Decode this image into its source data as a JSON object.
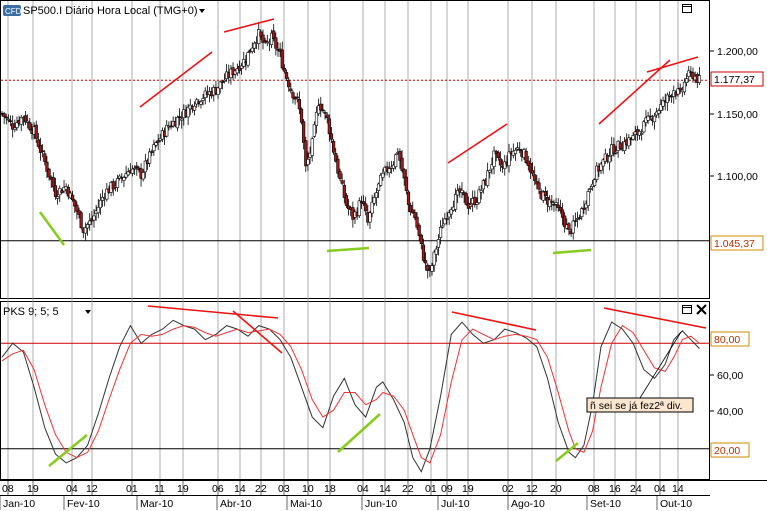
{
  "header": {
    "badge": "CFD",
    "title": "SP500.I Diário Hora Local (TMG+0)"
  },
  "price_panel": {
    "current_price_label": "1.177,37",
    "support_label": "1.045,37",
    "y_ticks": [
      "1.200,00",
      "1.150,00",
      "1.100,00"
    ]
  },
  "indicator_panel": {
    "title": "PKS 9; 5; 5",
    "level_high_label": "80,00",
    "level_low_label": "20,00",
    "y_ticks": [
      "60,00",
      "40,00"
    ],
    "annotation": "ñ sei se já fez2ª div."
  },
  "x_axis": {
    "day_ticks": [
      "08",
      "19",
      "04",
      "12",
      "01",
      "11",
      "19",
      "06",
      "14",
      "22",
      "03",
      "10",
      "18",
      "04",
      "14",
      "22",
      "01",
      "09",
      "19",
      "02",
      "12",
      "20",
      "08",
      "16",
      "24",
      "04",
      "14"
    ],
    "month_ticks": [
      "Jan-10",
      "Fev-10",
      "Mar-10",
      "Abr-10",
      "Mai-10",
      "Jun-10",
      "Jul-10",
      "Ago-10",
      "Set-10",
      "Out-10"
    ]
  },
  "colors": {
    "up_candle": "#ffffff",
    "down_candle": "#a01818",
    "trendline": "#ee1111",
    "green_line": "#88cc22",
    "k_line": "#333333",
    "d_line": "#ee3333",
    "current_price_line": "#cc0000"
  },
  "chart_data": [
    {
      "type": "candlestick",
      "title": "SP500.I Diário Hora Local (TMG+0)",
      "ylim": [
        1000,
        1240
      ],
      "y_ticks": [
        1100,
        1150,
        1200
      ],
      "horizontal_lines": [
        {
          "value": 1177.37,
          "style": "dotted",
          "color": "#cc0000",
          "label": "1.177,37"
        },
        {
          "value": 1045.37,
          "style": "solid",
          "color": "#000000",
          "label": "1.045,37"
        }
      ],
      "close_path": [
        [
          0,
          1150
        ],
        [
          5,
          1140
        ],
        [
          10,
          1148
        ],
        [
          15,
          1135
        ],
        [
          20,
          1110
        ],
        [
          25,
          1085
        ],
        [
          30,
          1090
        ],
        [
          35,
          1070
        ],
        [
          38,
          1055
        ],
        [
          42,
          1062
        ],
        [
          48,
          1085
        ],
        [
          55,
          1095
        ],
        [
          60,
          1105
        ],
        [
          65,
          1100
        ],
        [
          72,
          1125
        ],
        [
          78,
          1140
        ],
        [
          85,
          1150
        ],
        [
          90,
          1160
        ],
        [
          95,
          1165
        ],
        [
          100,
          1170
        ],
        [
          105,
          1180
        ],
        [
          110,
          1188
        ],
        [
          114,
          1195
        ],
        [
          118,
          1210
        ],
        [
          120,
          1215
        ],
        [
          123,
          1205
        ],
        [
          126,
          1212
        ],
        [
          130,
          1198
        ],
        [
          132,
          1185
        ],
        [
          135,
          1170
        ],
        [
          138,
          1160
        ],
        [
          140,
          1145
        ],
        [
          142,
          1105
        ],
        [
          145,
          1125
        ],
        [
          148,
          1160
        ],
        [
          152,
          1145
        ],
        [
          155,
          1120
        ],
        [
          158,
          1095
        ],
        [
          161,
          1075
        ],
        [
          164,
          1065
        ],
        [
          166,
          1070
        ],
        [
          168,
          1080
        ],
        [
          171,
          1060
        ],
        [
          174,
          1080
        ],
        [
          177,
          1095
        ],
        [
          180,
          1105
        ],
        [
          183,
          1110
        ],
        [
          185,
          1120
        ],
        [
          188,
          1095
        ],
        [
          190,
          1075
        ],
        [
          193,
          1065
        ],
        [
          196,
          1040
        ],
        [
          198,
          1025
        ],
        [
          200,
          1018
        ],
        [
          203,
          1040
        ],
        [
          206,
          1060
        ],
        [
          210,
          1075
        ],
        [
          214,
          1085
        ],
        [
          218,
          1075
        ],
        [
          222,
          1080
        ],
        [
          226,
          1095
        ],
        [
          230,
          1115
        ],
        [
          234,
          1105
        ],
        [
          238,
          1118
        ],
        [
          242,
          1122
        ],
        [
          246,
          1110
        ],
        [
          250,
          1088
        ],
        [
          254,
          1080
        ],
        [
          258,
          1075
        ],
        [
          262,
          1065
        ],
        [
          265,
          1052
        ],
        [
          268,
          1060
        ],
        [
          271,
          1070
        ],
        [
          274,
          1085
        ],
        [
          277,
          1100
        ],
        [
          281,
          1110
        ],
        [
          285,
          1120
        ],
        [
          290,
          1125
        ],
        [
          295,
          1130
        ],
        [
          300,
          1140
        ],
        [
          305,
          1150
        ],
        [
          310,
          1160
        ],
        [
          314,
          1170
        ],
        [
          317,
          1165
        ],
        [
          320,
          1180
        ],
        [
          323,
          1182
        ],
        [
          326,
          1177
        ]
      ]
    },
    {
      "type": "line",
      "title": "PKS 9; 5; 5",
      "ylim": [
        0,
        100
      ],
      "y_ticks": [
        20,
        40,
        60,
        80
      ],
      "horizontal_lines": [
        {
          "value": 80,
          "color": "#cc0000",
          "label": "80,00"
        },
        {
          "value": 20,
          "color": "#000000",
          "label": "20,00"
        }
      ],
      "series": [
        {
          "color": "#333333",
          "points": [
            [
              0,
              72
            ],
            [
              5,
              80
            ],
            [
              10,
              75
            ],
            [
              15,
              55
            ],
            [
              20,
              32
            ],
            [
              25,
              17
            ],
            [
              30,
              12
            ],
            [
              35,
              15
            ],
            [
              40,
              22
            ],
            [
              45,
              40
            ],
            [
              50,
              60
            ],
            [
              55,
              78
            ],
            [
              60,
              90
            ],
            [
              65,
              80
            ],
            [
              70,
              85
            ],
            [
              75,
              88
            ],
            [
              80,
              93
            ],
            [
              85,
              90
            ],
            [
              90,
              88
            ],
            [
              95,
              82
            ],
            [
              100,
              85
            ],
            [
              105,
              90
            ],
            [
              110,
              88
            ],
            [
              115,
              84
            ],
            [
              120,
              90
            ],
            [
              125,
              88
            ],
            [
              130,
              82
            ],
            [
              135,
              72
            ],
            [
              140,
              55
            ],
            [
              145,
              38
            ],
            [
              150,
              32
            ],
            [
              155,
              50
            ],
            [
              160,
              60
            ],
            [
              165,
              45
            ],
            [
              170,
              38
            ],
            [
              175,
              55
            ],
            [
              178,
              58
            ],
            [
              183,
              48
            ],
            [
              188,
              35
            ],
            [
              192,
              15
            ],
            [
              196,
              7
            ],
            [
              200,
              20
            ],
            [
              205,
              50
            ],
            [
              210,
              85
            ],
            [
              215,
              92
            ],
            [
              220,
              85
            ],
            [
              225,
              80
            ],
            [
              230,
              82
            ],
            [
              235,
              88
            ],
            [
              240,
              86
            ],
            [
              245,
              83
            ],
            [
              250,
              78
            ],
            [
              255,
              60
            ],
            [
              260,
              35
            ],
            [
              265,
              18
            ],
            [
              268,
              15
            ],
            [
              272,
              22
            ],
            [
              276,
              45
            ],
            [
              280,
              78
            ],
            [
              285,
              92
            ],
            [
              290,
              88
            ],
            [
              295,
              80
            ],
            [
              300,
              65
            ],
            [
              305,
              60
            ],
            [
              310,
              68
            ],
            [
              314,
              82
            ],
            [
              318,
              87
            ],
            [
              322,
              82
            ],
            [
              326,
              77
            ]
          ]
        },
        {
          "color": "#ee3333",
          "points": [
            [
              0,
              70
            ],
            [
              5,
              74
            ],
            [
              10,
              76
            ],
            [
              15,
              65
            ],
            [
              20,
              45
            ],
            [
              25,
              28
            ],
            [
              30,
              18
            ],
            [
              35,
              15
            ],
            [
              40,
              18
            ],
            [
              45,
              30
            ],
            [
              50,
              48
            ],
            [
              55,
              65
            ],
            [
              60,
              80
            ],
            [
              65,
              85
            ],
            [
              70,
              84
            ],
            [
              75,
              85
            ],
            [
              80,
              88
            ],
            [
              85,
              90
            ],
            [
              90,
              89
            ],
            [
              95,
              86
            ],
            [
              100,
              84
            ],
            [
              105,
              86
            ],
            [
              110,
              88
            ],
            [
              115,
              86
            ],
            [
              120,
              87
            ],
            [
              125,
              88
            ],
            [
              130,
              85
            ],
            [
              135,
              78
            ],
            [
              140,
              65
            ],
            [
              145,
              48
            ],
            [
              150,
              38
            ],
            [
              155,
              42
            ],
            [
              160,
              52
            ],
            [
              165,
              52
            ],
            [
              170,
              45
            ],
            [
              175,
              48
            ],
            [
              178,
              52
            ],
            [
              183,
              50
            ],
            [
              188,
              42
            ],
            [
              192,
              28
            ],
            [
              196,
              15
            ],
            [
              200,
              12
            ],
            [
              205,
              28
            ],
            [
              210,
              58
            ],
            [
              215,
              82
            ],
            [
              220,
              88
            ],
            [
              225,
              85
            ],
            [
              230,
              82
            ],
            [
              235,
              84
            ],
            [
              240,
              85
            ],
            [
              245,
              84
            ],
            [
              250,
              82
            ],
            [
              255,
              72
            ],
            [
              260,
              52
            ],
            [
              265,
              30
            ],
            [
              268,
              20
            ],
            [
              272,
              18
            ],
            [
              276,
              30
            ],
            [
              280,
              55
            ],
            [
              285,
              80
            ],
            [
              290,
              90
            ],
            [
              295,
              86
            ],
            [
              300,
              76
            ],
            [
              305,
              66
            ],
            [
              310,
              64
            ],
            [
              314,
              72
            ],
            [
              318,
              82
            ],
            [
              322,
              84
            ],
            [
              326,
              80
            ]
          ]
        }
      ]
    }
  ]
}
